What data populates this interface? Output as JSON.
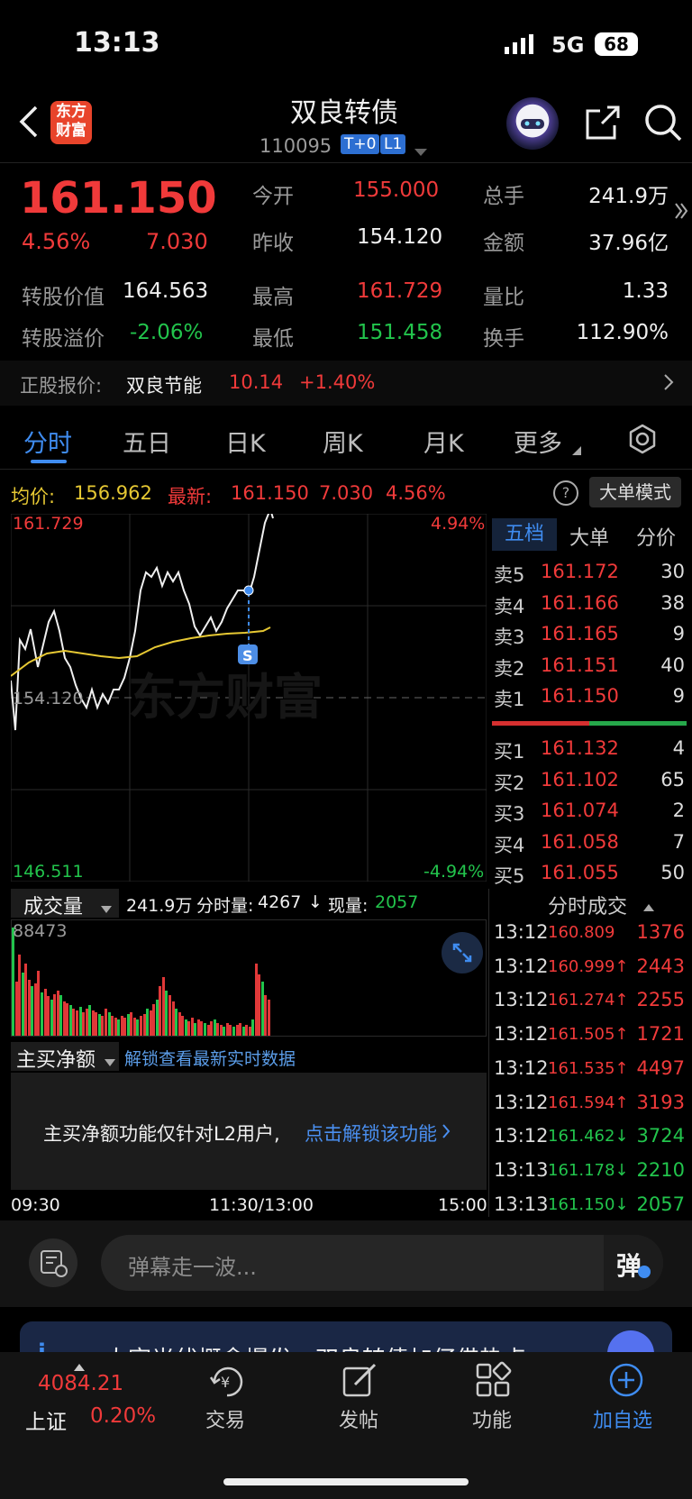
{
  "status_bar": {
    "time": "13:13",
    "network": "5G",
    "battery": "68"
  },
  "header": {
    "title": "双良转债",
    "code": "110095",
    "tag1": "T+0",
    "tag2": "L1",
    "logo_text": "东方\n财富"
  },
  "quote": {
    "price": "161.150",
    "change_pct": "4.56%",
    "change": "7.030",
    "open_label": "今开",
    "open": "155.000",
    "volume_label": "总手",
    "volume": "241.9万",
    "prev_close_label": "昨收",
    "prev_close": "154.120",
    "amount_label": "金额",
    "amount": "37.96亿",
    "conv_value_label": "转股价值",
    "conv_value": "164.563",
    "high_label": "最高",
    "high": "161.729",
    "vol_ratio_label": "量比",
    "vol_ratio": "1.33",
    "premium_label": "转股溢价",
    "premium": "-2.06%",
    "low_label": "最低",
    "low": "151.458",
    "turnover_label": "换手",
    "turnover": "112.90%"
  },
  "stock_link": {
    "label": "正股报价:",
    "name": "双良节能",
    "price": "10.14",
    "change": "+1.40%"
  },
  "tabs": [
    "分时",
    "五日",
    "日K",
    "周K",
    "月K",
    "更多"
  ],
  "info_bar": {
    "avg_label": "均价:",
    "avg": "156.962",
    "latest_label": "最新:",
    "latest": "161.150",
    "chg": "7.030",
    "pct": "4.56%",
    "mode_button": "大单模式"
  },
  "chart": {
    "max_price": "161.729",
    "max_pct": "4.94%",
    "mid_price": "154.120",
    "min_price": "146.511",
    "min_pct": "-4.94%",
    "s_marker": "S",
    "watermark": "东方财富"
  },
  "orderbook_tabs": [
    "五档",
    "大单",
    "分价"
  ],
  "sell": [
    {
      "label": "卖5",
      "price": "161.172",
      "vol": "30"
    },
    {
      "label": "卖4",
      "price": "161.166",
      "vol": "38"
    },
    {
      "label": "卖3",
      "price": "161.165",
      "vol": "9"
    },
    {
      "label": "卖2",
      "price": "161.151",
      "vol": "40"
    },
    {
      "label": "卖1",
      "price": "161.150",
      "vol": "9"
    }
  ],
  "buy": [
    {
      "label": "买1",
      "price": "161.132",
      "vol": "4"
    },
    {
      "label": "买2",
      "price": "161.102",
      "vol": "65"
    },
    {
      "label": "买3",
      "price": "161.074",
      "vol": "2"
    },
    {
      "label": "买4",
      "price": "161.058",
      "vol": "7"
    },
    {
      "label": "买5",
      "price": "161.055",
      "vol": "50"
    }
  ],
  "volume_bar": {
    "selector": "成交量",
    "total": "241.9万",
    "period_label": "分时量:",
    "period": "4267",
    "now_label": "现量:",
    "now": "2057",
    "max": "88473"
  },
  "trades_title": "分时成交",
  "trades": [
    {
      "time": "13:12",
      "price": "160.809",
      "vol": "1376",
      "dir": "",
      "color": "red"
    },
    {
      "time": "13:12",
      "price": "160.999↑",
      "vol": "2443",
      "dir": "up",
      "color": "red"
    },
    {
      "time": "13:12",
      "price": "161.274↑",
      "vol": "2255",
      "dir": "up",
      "color": "red"
    },
    {
      "time": "13:12",
      "price": "161.505↑",
      "vol": "1721",
      "dir": "up",
      "color": "red"
    },
    {
      "time": "13:12",
      "price": "161.535↑",
      "vol": "4497",
      "dir": "up",
      "color": "red"
    },
    {
      "time": "13:12",
      "price": "161.594↑",
      "vol": "3193",
      "dir": "up",
      "color": "red"
    },
    {
      "time": "13:12",
      "price": "161.462↓",
      "vol": "3724",
      "dir": "down",
      "color": "green"
    },
    {
      "time": "13:13",
      "price": "161.178↓",
      "vol": "2210",
      "dir": "down",
      "color": "green"
    },
    {
      "time": "13:13",
      "price": "161.150↓",
      "vol": "2057",
      "dir": "down",
      "color": "green"
    }
  ],
  "main_net": {
    "selector": "主买净额",
    "unlock": "解锁查看最新实时数据",
    "notice": "主买净额功能仅针对L2用户,",
    "notice_link": "点击解锁该功能"
  },
  "time_axis": {
    "start": "09:30",
    "mid": "11:30/13:00",
    "end": "15:00"
  },
  "danmu": {
    "placeholder": "弹幕走一波...",
    "button": "弹"
  },
  "banner": {
    "text": "大宗光伏概念爆发，双良转债加仔借热点"
  },
  "bottom_nav": {
    "index_value": "4084.21",
    "index_name": "上证",
    "index_pct": "0.20%",
    "trade": "交易",
    "post": "发帖",
    "func": "功能",
    "add": "加自选"
  },
  "colors": {
    "up": "#f03a3a",
    "down": "#22c44c",
    "accent": "#3f8cf0",
    "bg": "#000000"
  }
}
